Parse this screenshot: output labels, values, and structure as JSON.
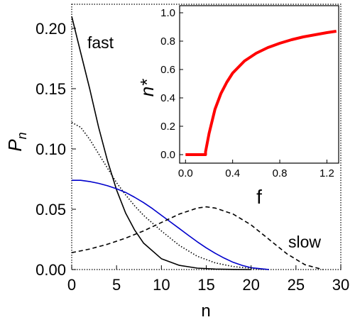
{
  "chart_data": [
    {
      "type": "line",
      "xlabel": "n",
      "ylabel": "P",
      "ylabel_subscript": "n",
      "xlim": [
        0,
        30
      ],
      "ylim": [
        0,
        0.22
      ],
      "x_ticks": [
        "0",
        "5",
        "10",
        "15",
        "20",
        "25",
        "30"
      ],
      "y_ticks": [
        "0.00",
        "0.05",
        "0.10",
        "0.15",
        "0.20"
      ],
      "grid": false,
      "annotations": [
        {
          "text": "fast",
          "near_series": "solid-black"
        },
        {
          "text": "slow",
          "near_series": "dashed-black"
        }
      ],
      "series": [
        {
          "style": "solid",
          "color": "#000000",
          "x": [
            0,
            1,
            2,
            3,
            4,
            5,
            6,
            7,
            8,
            10,
            12,
            14,
            16,
            18,
            20
          ],
          "y": [
            0.21,
            0.18,
            0.15,
            0.118,
            0.09,
            0.066,
            0.047,
            0.033,
            0.022,
            0.009,
            0.0035,
            0.0012,
            0.0004,
            0.0001,
            0
          ]
        },
        {
          "style": "dotted",
          "color": "#000000",
          "x": [
            0,
            1,
            2,
            3,
            4,
            5,
            6,
            7,
            8,
            10,
            12,
            14,
            16,
            18,
            20,
            22
          ],
          "y": [
            0.122,
            0.118,
            0.108,
            0.096,
            0.084,
            0.072,
            0.062,
            0.053,
            0.045,
            0.032,
            0.02,
            0.011,
            0.0055,
            0.0025,
            0.001,
            0
          ]
        },
        {
          "style": "solid",
          "color": "#0000cc",
          "x": [
            0,
            1,
            2,
            3,
            4,
            5,
            6,
            7,
            8,
            9,
            10,
            11,
            12,
            13,
            14,
            15,
            16,
            17,
            18,
            19,
            20,
            22
          ],
          "y": [
            0.074,
            0.074,
            0.073,
            0.0715,
            0.0695,
            0.067,
            0.064,
            0.06,
            0.0555,
            0.0505,
            0.045,
            0.0395,
            0.034,
            0.0285,
            0.023,
            0.018,
            0.0135,
            0.0095,
            0.006,
            0.0035,
            0.0015,
            0
          ]
        },
        {
          "style": "dashed",
          "color": "#000000",
          "x": [
            0,
            2,
            4,
            6,
            8,
            10,
            12,
            14,
            15,
            16,
            18,
            20,
            22,
            24,
            26,
            28
          ],
          "y": [
            0.014,
            0.017,
            0.021,
            0.026,
            0.032,
            0.039,
            0.046,
            0.051,
            0.052,
            0.051,
            0.046,
            0.037,
            0.025,
            0.013,
            0.004,
            0
          ]
        }
      ]
    },
    {
      "type": "line",
      "inset": true,
      "xlabel": "f",
      "ylabel": "n*",
      "xlim": [
        -0.05,
        1.3
      ],
      "ylim": [
        -0.06,
        1.05
      ],
      "x_ticks": [
        "0.0",
        "0.4",
        "0.8",
        "1.2"
      ],
      "y_ticks": [
        "0.0",
        "0.2",
        "0.4",
        "0.6",
        "0.8",
        "1.0"
      ],
      "grid": false,
      "series": [
        {
          "style": "solid",
          "color": "#ff0000",
          "x": [
            0,
            0.1,
            0.17,
            0.17,
            0.2,
            0.25,
            0.3,
            0.35,
            0.4,
            0.5,
            0.6,
            0.7,
            0.8,
            0.9,
            1.0,
            1.1,
            1.2,
            1.28
          ],
          "y": [
            0,
            0,
            0,
            0.02,
            0.15,
            0.32,
            0.43,
            0.51,
            0.575,
            0.66,
            0.715,
            0.755,
            0.785,
            0.81,
            0.83,
            0.845,
            0.86,
            0.87
          ]
        }
      ]
    }
  ]
}
